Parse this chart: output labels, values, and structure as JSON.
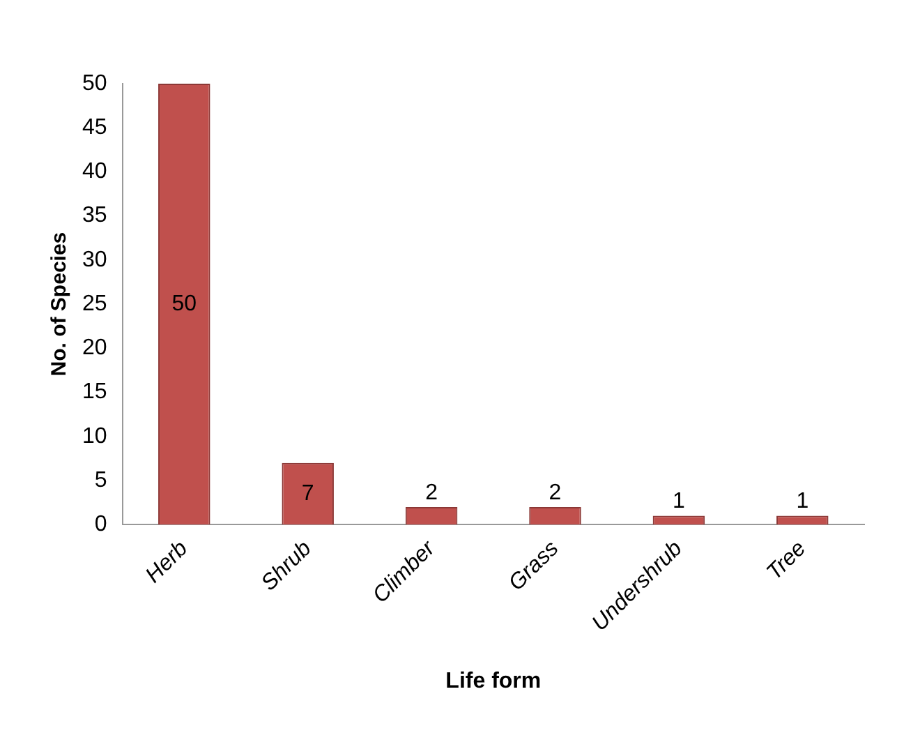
{
  "chart_data": {
    "type": "bar",
    "xlabel": "Life form",
    "ylabel": "No. of Species",
    "categories": [
      "Herb",
      "Shrub",
      "Climber",
      "Grass",
      "Undershrub",
      "Tree"
    ],
    "values": [
      50,
      7,
      2,
      2,
      1,
      1
    ],
    "color": "#c0504d",
    "ylim": [
      0,
      50
    ],
    "yticks": [
      0,
      5,
      10,
      15,
      20,
      25,
      30,
      35,
      40,
      45,
      50
    ],
    "grid": false,
    "legend": false,
    "data_labels": true
  }
}
